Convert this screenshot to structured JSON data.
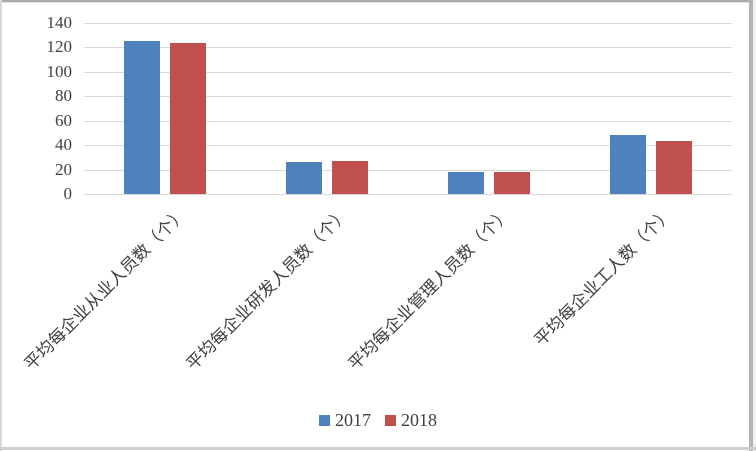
{
  "chart_data": {
    "type": "bar",
    "categories": [
      "平均每企业从业人员数（个）",
      "平均每企业研发人员数（个）",
      "平均每企业管理人员数（个）",
      "平均每企业工人数（个）"
    ],
    "series": [
      {
        "name": "2017",
        "color": "#4F81BD",
        "values": [
          125,
          26,
          18,
          48
        ]
      },
      {
        "name": "2018",
        "color": "#C0504D",
        "values": [
          123,
          27,
          18,
          43
        ]
      }
    ],
    "title": "",
    "xlabel": "",
    "ylabel": "",
    "ylim": [
      0,
      140
    ],
    "yticks": [
      0,
      20,
      40,
      60,
      80,
      100,
      120,
      140
    ],
    "grid": true,
    "legend_position": "bottom",
    "colors": {
      "gridline": "#d9d9d9",
      "axis_text": "#404040",
      "background": "#ffffff"
    }
  }
}
